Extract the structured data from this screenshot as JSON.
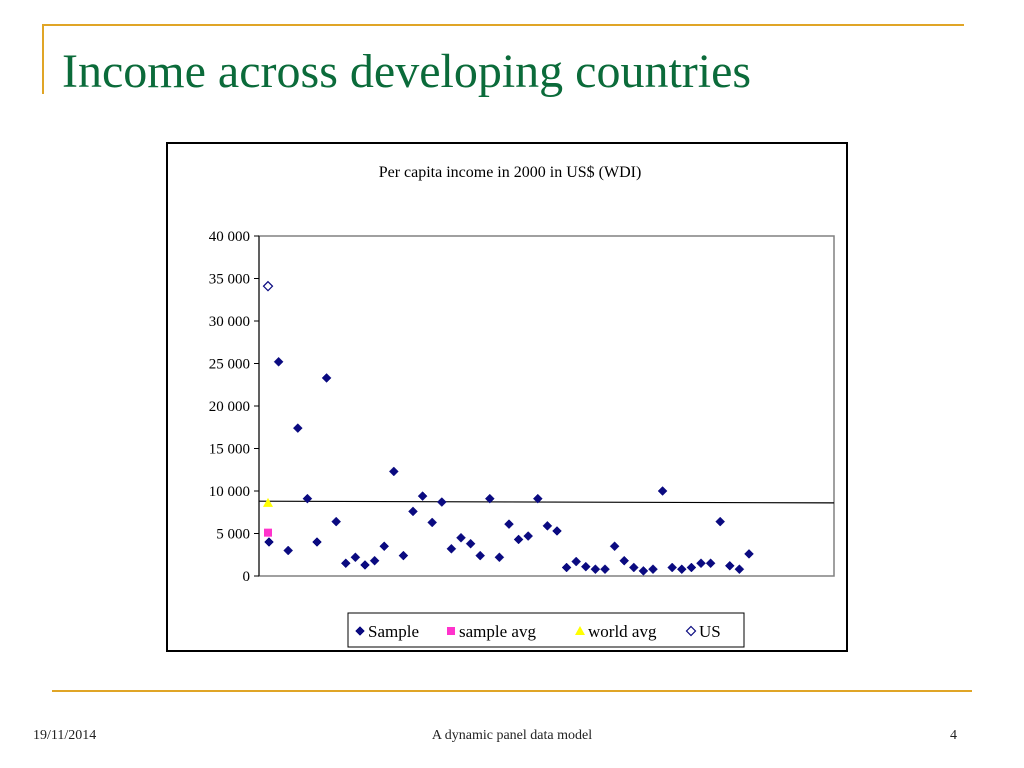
{
  "slide": {
    "title": "Income across developing countries",
    "accent_color": "#e0a526",
    "title_color": "#0b6b3a"
  },
  "footer": {
    "date": "19/11/2014",
    "center": "A dynamic panel data model",
    "page": "4"
  },
  "chart_data": {
    "type": "scatter",
    "title": "Per capita income in 2000 in US$ (WDI)",
    "xlabel": "",
    "ylabel": "",
    "ylim": [
      0,
      40000
    ],
    "y_ticks": [
      0,
      5000,
      10000,
      15000,
      20000,
      25000,
      30000,
      35000,
      40000
    ],
    "y_tick_labels": [
      "0",
      "5 000",
      "10 000",
      "15 000",
      "20 000",
      "25 000",
      "30 000",
      "35 000",
      "40 000"
    ],
    "xlim": [
      0,
      60
    ],
    "grid": false,
    "legend": {
      "position": "bottom",
      "entries": [
        "Sample",
        "sample avg",
        "world avg",
        "US"
      ]
    },
    "reference_line": {
      "label": "world avg",
      "y_start": 8800,
      "y_end": 8600,
      "color": "#000000"
    },
    "series": [
      {
        "name": "Sample",
        "marker": "diamond",
        "color": "#0a0a80",
        "x": [
          1,
          2,
          3,
          4,
          5,
          6,
          7,
          8,
          9,
          10,
          11,
          12,
          13,
          14,
          15,
          16,
          17,
          18,
          19,
          20,
          21,
          22,
          23,
          24,
          25,
          26,
          27,
          28,
          29,
          30,
          31,
          32,
          33,
          34,
          35,
          36,
          37,
          38,
          39,
          40,
          41,
          42,
          43,
          44,
          45,
          46,
          47,
          48,
          49,
          50
        ],
        "y": [
          4000,
          25200,
          3000,
          17400,
          9100,
          4000,
          23300,
          6400,
          1500,
          2200,
          1300,
          1800,
          3500,
          12300,
          2400,
          7600,
          9400,
          6300,
          8700,
          3200,
          4500,
          3800,
          2400,
          9100,
          2200,
          6100,
          4300,
          4700,
          9100,
          5900,
          5300,
          1000,
          1700,
          1100,
          800,
          800,
          3500,
          1800,
          1000,
          600,
          800,
          10000,
          1000,
          800,
          1000,
          1500,
          1500,
          6400,
          1200,
          800
        ]
      },
      {
        "name": "sample avg",
        "marker": "square",
        "color": "#ff33cc",
        "x": [
          0.8
        ],
        "y": [
          5100
        ]
      },
      {
        "name": "world avg",
        "marker": "triangle",
        "color": "#ffff00",
        "x": [
          0.9
        ],
        "y": [
          8600
        ]
      },
      {
        "name": "US",
        "marker": "open-diamond",
        "color": "#0a0a80",
        "x": [
          0.9
        ],
        "y": [
          34100
        ]
      }
    ],
    "extra_last_point": {
      "x": 51,
      "y": 2600
    }
  }
}
